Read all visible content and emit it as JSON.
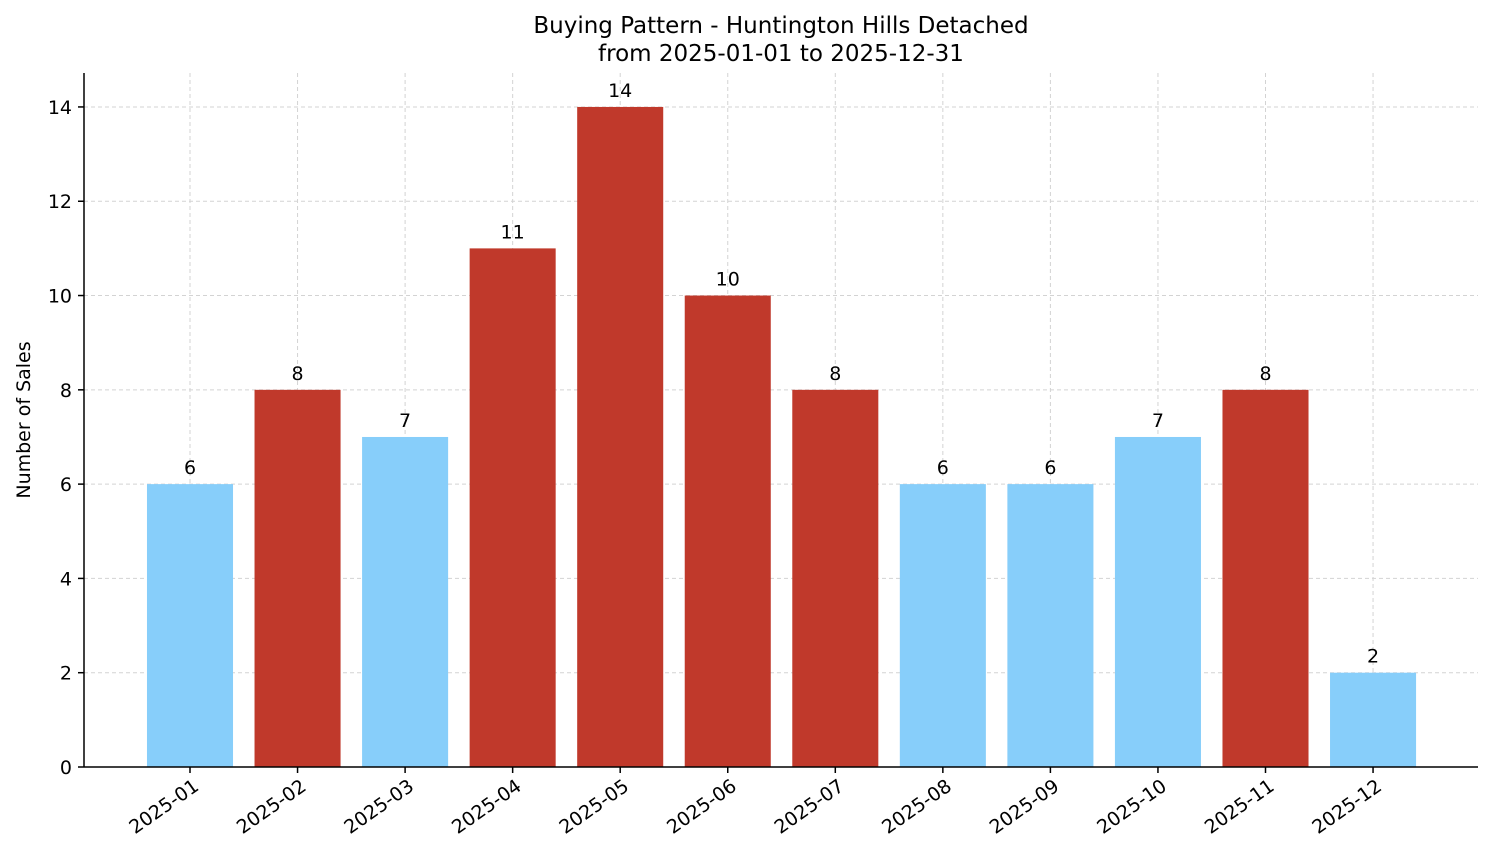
{
  "chart_data": {
    "type": "bar",
    "title": "Buying Pattern - Huntington Hills Detached",
    "subtitle": "from 2025-01-01 to 2025-12-31",
    "y_label": "Number of Sales",
    "categories": [
      "2025-01",
      "2025-02",
      "2025-03",
      "2025-04",
      "2025-05",
      "2025-06",
      "2025-07",
      "2025-08",
      "2025-09",
      "2025-10",
      "2025-11",
      "2025-12"
    ],
    "values": [
      6,
      8,
      7,
      11,
      14,
      10,
      8,
      6,
      6,
      7,
      8,
      2
    ],
    "colors": [
      "#87cefa",
      "#c0392b",
      "#87cefa",
      "#c0392b",
      "#c0392b",
      "#c0392b",
      "#c0392b",
      "#87cefa",
      "#87cefa",
      "#87cefa",
      "#c0392b",
      "#87cefa"
    ],
    "ylim": [
      0,
      14.72
    ],
    "yticks": [
      0,
      2,
      4,
      6,
      8,
      10,
      12,
      14
    ],
    "grid": true
  }
}
